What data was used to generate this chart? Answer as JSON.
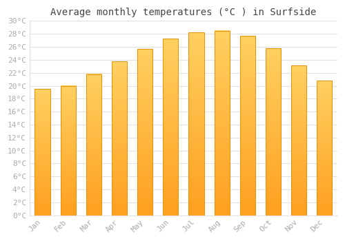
{
  "title": "Average monthly temperatures (°C ) in Surfside",
  "months": [
    "Jan",
    "Feb",
    "Mar",
    "Apr",
    "May",
    "Jun",
    "Jul",
    "Aug",
    "Sep",
    "Oct",
    "Nov",
    "Dec"
  ],
  "values": [
    19.5,
    20.0,
    21.8,
    23.8,
    25.7,
    27.3,
    28.2,
    28.5,
    27.7,
    25.8,
    23.1,
    20.8
  ],
  "bar_color_top": "#FFD060",
  "bar_color_bottom": "#FFA020",
  "bar_edge_color": "#E8900A",
  "background_color": "#FFFFFF",
  "grid_color": "#E0E0E0",
  "ytick_step": 2,
  "ymin": 0,
  "ymax": 30,
  "title_fontsize": 10,
  "tick_fontsize": 8,
  "font_family": "monospace",
  "tick_color": "#AAAAAA",
  "title_color": "#444444",
  "bar_width": 0.6
}
